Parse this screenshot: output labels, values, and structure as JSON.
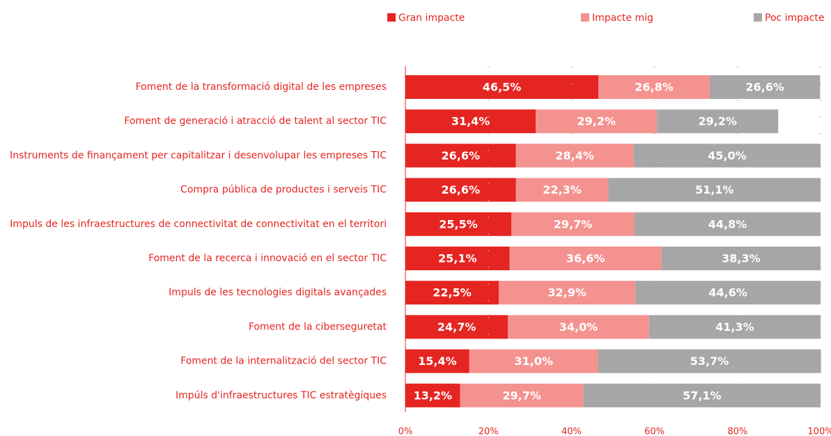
{
  "chart_data": {
    "type": "stacked-bar-horizontal",
    "categories": [
      "Foment de la transformació digital de les empreses",
      "Foment de generació i atracció de talent al sector TIC",
      "Instruments de finançament per capitalitzar i desenvolupar les empreses TIC",
      "Compra pública de productes i serveis TIC",
      "Impuls de les infraestructures de connectivitat de connectivitat en el territori",
      "Foment de la recerca i innovació en el sector TIC",
      "Impuls de les tecnologies digitals avançades",
      "Foment de la ciberseguretat",
      "Foment de la internalització del sector TIC",
      "Impúls d'infraestructures TIC estratègiques"
    ],
    "series": [
      {
        "name": "Gran impacte",
        "color": "#e52521",
        "values": [
          46.5,
          31.4,
          26.6,
          26.6,
          25.5,
          25.1,
          22.5,
          24.7,
          15.4,
          13.2
        ],
        "value_labels": [
          "46,5%",
          "31,4%",
          "26,6%",
          "26,6%",
          "25,5%",
          "25,1%",
          "22,5%",
          "24,7%",
          "15,4%",
          "13,2%"
        ]
      },
      {
        "name": "Impacte mig",
        "color": "#f4928f",
        "values": [
          26.8,
          29.2,
          28.4,
          22.3,
          29.7,
          36.6,
          32.9,
          34.0,
          31.0,
          29.7
        ],
        "value_labels": [
          "26,8%",
          "29,2%",
          "28,4%",
          "22,3%",
          "29,7%",
          "36,6%",
          "32,9%",
          "34,0%",
          "31,0%",
          "29,7%"
        ]
      },
      {
        "name": "Poc impacte",
        "color": "#a6a6a6",
        "values": [
          26.6,
          29.2,
          45.0,
          51.1,
          44.8,
          38.3,
          44.6,
          41.3,
          53.7,
          57.1
        ],
        "value_labels": [
          "26,6%",
          "29,2%",
          "45,0%",
          "51,1%",
          "44,8%",
          "38,3%",
          "44,6%",
          "41,3%",
          "53,7%",
          "57,1%"
        ]
      }
    ],
    "xlim": [
      0,
      100
    ],
    "xticks": [
      {
        "value": 0,
        "label": "0%"
      },
      {
        "value": 20,
        "label": "20%"
      },
      {
        "value": 40,
        "label": "40%"
      },
      {
        "value": 60,
        "label": "60%"
      },
      {
        "value": 80,
        "label": "80%"
      },
      {
        "value": 100,
        "label": "100%"
      }
    ],
    "grid": true,
    "legend": "top"
  }
}
